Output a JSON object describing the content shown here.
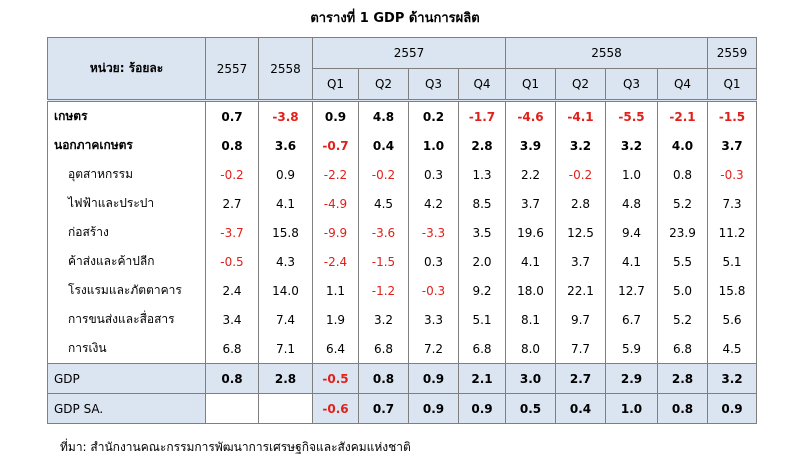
{
  "header": {
    "title": "ตารางที่ 1 GDP ด้านการผลิต"
  },
  "table": {
    "unit": "หน่วย: ร้อยละ",
    "annual": [
      "2557",
      "2558"
    ],
    "year_groups": [
      {
        "year": "2557",
        "quarters": [
          "Q1",
          "Q2",
          "Q3",
          "Q4"
        ]
      },
      {
        "year": "2558",
        "quarters": [
          "Q1",
          "Q2",
          "Q3",
          "Q4"
        ]
      },
      {
        "year": "2559",
        "quarters": [
          "Q1"
        ]
      }
    ],
    "rows": [
      {
        "label": "เกษตร",
        "values": [
          "0.7",
          "-3.8",
          "0.9",
          "4.8",
          "0.2",
          "-1.7",
          "-4.6",
          "-4.1",
          "-5.5",
          "-2.1",
          "-1.5"
        ]
      },
      {
        "label": "นอกภาคเกษตร",
        "values": [
          "0.8",
          "3.6",
          "-0.7",
          "0.4",
          "1.0",
          "2.8",
          "3.9",
          "3.2",
          "3.2",
          "4.0",
          "3.7"
        ]
      },
      {
        "label": "อุตสาหกรรม",
        "values": [
          "-0.2",
          "0.9",
          "-2.2",
          "-0.2",
          "0.3",
          "1.3",
          "2.2",
          "-0.2",
          "1.0",
          "0.8",
          "-0.3"
        ]
      },
      {
        "label": "ไฟฟ้าและประปา",
        "values": [
          "2.7",
          "4.1",
          "-4.9",
          "4.5",
          "4.2",
          "8.5",
          "3.7",
          "2.8",
          "4.8",
          "5.2",
          "7.3"
        ]
      },
      {
        "label": "ก่อสร้าง",
        "values": [
          "-3.7",
          "15.8",
          "-9.9",
          "-3.6",
          "-3.3",
          "3.5",
          "19.6",
          "12.5",
          "9.4",
          "23.9",
          "11.2"
        ]
      },
      {
        "label": "ค้าส่งและค้าปลีก",
        "values": [
          "-0.5",
          "4.3",
          "-2.4",
          "-1.5",
          "0.3",
          "2.0",
          "4.1",
          "3.7",
          "4.1",
          "5.5",
          "5.1"
        ]
      },
      {
        "label": "โรงแรมและภัตตาคาร",
        "values": [
          "2.4",
          "14.0",
          "1.1",
          "-1.2",
          "-0.3",
          "9.2",
          "18.0",
          "22.1",
          "12.7",
          "5.0",
          "15.8"
        ]
      },
      {
        "label": "การขนส่งและสื่อสาร",
        "values": [
          "3.4",
          "7.4",
          "1.9",
          "3.2",
          "3.3",
          "5.1",
          "8.1",
          "9.7",
          "6.7",
          "5.2",
          "5.6"
        ]
      },
      {
        "label": "การเงิน",
        "values": [
          "6.8",
          "7.1",
          "6.4",
          "6.8",
          "7.2",
          "6.8",
          "8.0",
          "7.7",
          "5.9",
          "6.8",
          "4.5"
        ]
      },
      {
        "label": "GDP",
        "values": [
          "0.8",
          "2.8",
          "-0.5",
          "0.8",
          "0.9",
          "2.1",
          "3.0",
          "2.7",
          "2.9",
          "2.8",
          "3.2"
        ]
      },
      {
        "label": "GDP SA.",
        "values": [
          null,
          null,
          "-0.6",
          "0.7",
          "0.9",
          "0.9",
          "0.5",
          "0.4",
          "1.0",
          "0.8",
          "0.9"
        ]
      }
    ]
  },
  "footer": {
    "source": "ที่มา: สำนักงานคณะกรรมการพัฒนาการเศรษฐกิจและสังคมแห่งชาติ"
  }
}
